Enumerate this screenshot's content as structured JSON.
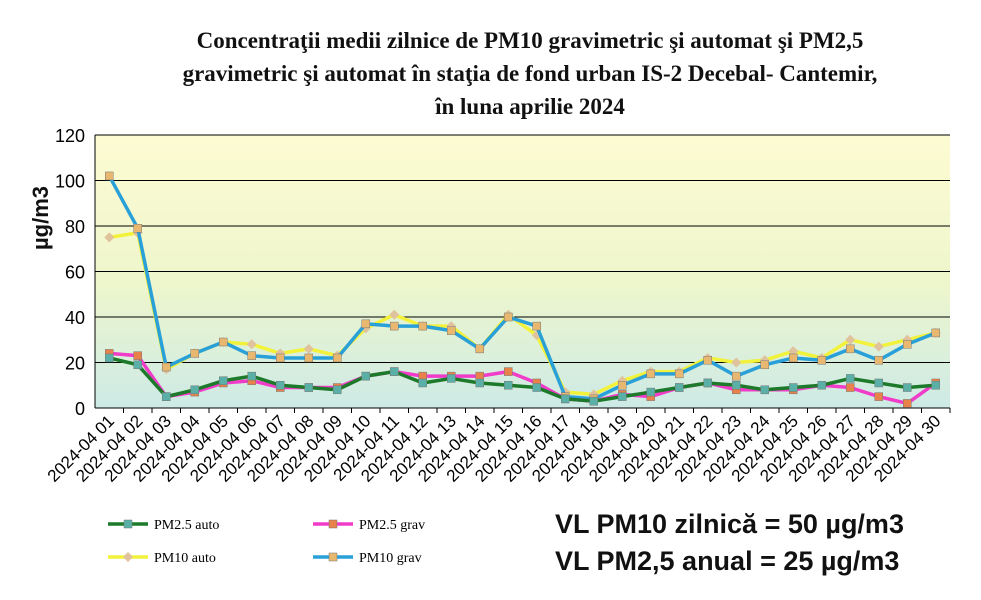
{
  "title_lines": [
    "Concentraţii medii zilnice de PM10 gravimetric şi automat şi PM2,5",
    "gravimetric şi automat în staţia de fond urban IS-2 Decebal- Cantemir,",
    "în luna aprilie 2024"
  ],
  "notes": {
    "vl_pm10": "VL  PM10 zilnică = 50 µg/m3",
    "vl_pm25": "VL  PM2,5 anual = 25  µg/m3"
  },
  "colors": {
    "bg_top": "#fdfbd2",
    "bg_mid": "#eef6cc",
    "bg_bottom": "#cdeae6",
    "pm25_auto": "#1c7a2a",
    "pm25_auto_marker": "#5ab0a6",
    "pm25_grav": "#f03cc8",
    "pm25_grav_marker": "#e8824a",
    "pm10_auto": "#f2f23a",
    "pm10_auto_marker": "#e0c29c",
    "pm10_grav": "#2aa0d8",
    "pm10_grav_marker": "#e8b870"
  },
  "chart_data": {
    "type": "line",
    "title": "Concentraţii medii zilnice de PM10 gravimetric şi automat şi PM2,5 gravimetric şi automat în staţia de fond urban IS-2 Decebal- Cantemir, în luna aprilie 2024",
    "xlabel": "",
    "ylabel": "µg/m3",
    "ylim": [
      0,
      120
    ],
    "yticks": [
      0,
      20,
      40,
      60,
      80,
      100,
      120
    ],
    "grid": true,
    "legend": "bottom-left",
    "categories": [
      "2024-04 01",
      "2024-04 02",
      "2024-04 03",
      "2024-04 04",
      "2024-04 05",
      "2024-04 06",
      "2024-04 07",
      "2024-04 08",
      "2024-04 09",
      "2024-04 10",
      "2024-04 11",
      "2024-04 12",
      "2024-04 13",
      "2024-04 14",
      "2024-04 15",
      "2024-04 16",
      "2024-04 17",
      "2024-04 18",
      "2024-04 19",
      "2024-04 20",
      "2024-04 21",
      "2024-04 22",
      "2024-04 23",
      "2024-04 24",
      "2024-04 25",
      "2024-04 26",
      "2024-04 27",
      "2024-04 28",
      "2024-04 29",
      "2024-04 30"
    ],
    "series": [
      {
        "name": "PM2.5 auto",
        "values": [
          22,
          19,
          5,
          8,
          12,
          14,
          10,
          9,
          8,
          14,
          16,
          11,
          13,
          11,
          10,
          9,
          4,
          3,
          5,
          7,
          9,
          11,
          10,
          8,
          9,
          10,
          13,
          11,
          9,
          10
        ]
      },
      {
        "name": "PM2.5 grav",
        "values": [
          24,
          23,
          5,
          7,
          11,
          12,
          9,
          9,
          9,
          14,
          16,
          14,
          14,
          14,
          16,
          11,
          4,
          3,
          6,
          5,
          9,
          11,
          8,
          8,
          8,
          10,
          9,
          5,
          2,
          11
        ]
      },
      {
        "name": "PM10 auto",
        "values": [
          75,
          77,
          17,
          24,
          29,
          28,
          24,
          26,
          23,
          35,
          41,
          36,
          36,
          26,
          41,
          32,
          7,
          6,
          12,
          16,
          16,
          22,
          20,
          21,
          25,
          22,
          30,
          27,
          30,
          33
        ]
      },
      {
        "name": "PM10 grav",
        "values": [
          102,
          79,
          18,
          24,
          29,
          23,
          22,
          22,
          22,
          37,
          36,
          36,
          34,
          26,
          40,
          36,
          5,
          4,
          10,
          15,
          15,
          21,
          14,
          19,
          22,
          21,
          26,
          21,
          28,
          33
        ]
      }
    ]
  }
}
